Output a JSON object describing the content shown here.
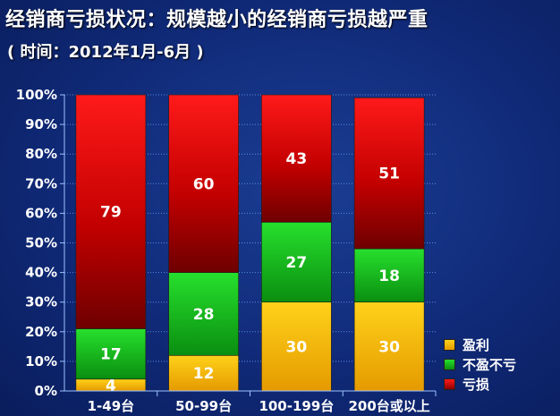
{
  "title": "经销商亏损状况：规模越小的经销商亏损越严重",
  "subtitle": "( 时间：2012年1月-6月 )",
  "colors": {
    "profit": "#f5b800",
    "breakeven": "#11c21c",
    "loss": "#d40000",
    "grid": "#6ea6ff",
    "text": "#ffffff"
  },
  "chart_data": {
    "type": "bar",
    "stacked": true,
    "categories": [
      "1-49台",
      "50-99台",
      "100-199台",
      "200台或以上"
    ],
    "series": [
      {
        "name": "盈利",
        "values": [
          4,
          12,
          30,
          30
        ]
      },
      {
        "name": "不盈不亏",
        "values": [
          17,
          28,
          27,
          18
        ]
      },
      {
        "name": "亏损",
        "values": [
          79,
          60,
          43,
          51
        ]
      }
    ],
    "ylim": [
      0,
      100
    ],
    "yticks": [
      "0%",
      "10%",
      "20%",
      "30%",
      "40%",
      "50%",
      "60%",
      "70%",
      "80%",
      "90%",
      "100%"
    ],
    "grid": true,
    "legend_position": "bottom-right"
  }
}
